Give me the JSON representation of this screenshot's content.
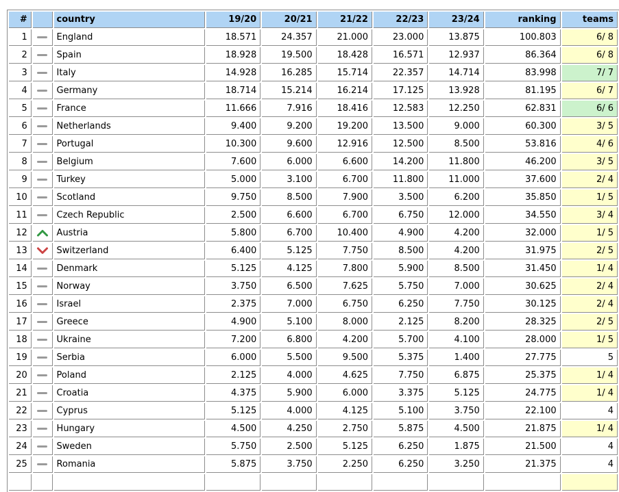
{
  "colors": {
    "header_bg": "#b0d4f4",
    "teams_yellow": "#ffffcc",
    "teams_green": "#ccf2cc",
    "border_gray": "#8c8c8c",
    "trend_up_green": "#339944",
    "trend_down_red": "#cc4444",
    "trend_same_gray": "#9a9a9a"
  },
  "table": {
    "headers": [
      "#",
      "",
      "country",
      "19/20",
      "20/21",
      "21/22",
      "22/23",
      "23/24",
      "ranking",
      "teams"
    ],
    "rows": [
      {
        "num": "1",
        "trend": "same",
        "country": "England",
        "seasons": [
          "18.571",
          "24.357",
          "21.000",
          "23.000",
          "13.875"
        ],
        "ranking": "100.803",
        "teams": "6/ 8",
        "teams_highlight": "yellow"
      },
      {
        "num": "2",
        "trend": "same",
        "country": "Spain",
        "seasons": [
          "18.928",
          "19.500",
          "18.428",
          "16.571",
          "12.937"
        ],
        "ranking": "86.364",
        "teams": "6/ 8",
        "teams_highlight": "yellow"
      },
      {
        "num": "3",
        "trend": "same",
        "country": "Italy",
        "seasons": [
          "14.928",
          "16.285",
          "15.714",
          "22.357",
          "14.714"
        ],
        "ranking": "83.998",
        "teams": "7/ 7",
        "teams_highlight": "green"
      },
      {
        "num": "4",
        "trend": "same",
        "country": "Germany",
        "seasons": [
          "18.714",
          "15.214",
          "16.214",
          "17.125",
          "13.928"
        ],
        "ranking": "81.195",
        "teams": "6/ 7",
        "teams_highlight": "yellow"
      },
      {
        "num": "5",
        "trend": "same",
        "country": "France",
        "seasons": [
          "11.666",
          "7.916",
          "18.416",
          "12.583",
          "12.250"
        ],
        "ranking": "62.831",
        "teams": "6/ 6",
        "teams_highlight": "green"
      },
      {
        "num": "6",
        "trend": "same",
        "country": "Netherlands",
        "seasons": [
          "9.400",
          "9.200",
          "19.200",
          "13.500",
          "9.000"
        ],
        "ranking": "60.300",
        "teams": "3/ 5",
        "teams_highlight": "yellow"
      },
      {
        "num": "7",
        "trend": "same",
        "country": "Portugal",
        "seasons": [
          "10.300",
          "9.600",
          "12.916",
          "12.500",
          "8.500"
        ],
        "ranking": "53.816",
        "teams": "4/ 6",
        "teams_highlight": "yellow"
      },
      {
        "num": "8",
        "trend": "same",
        "country": "Belgium",
        "seasons": [
          "7.600",
          "6.000",
          "6.600",
          "14.200",
          "11.800"
        ],
        "ranking": "46.200",
        "teams": "3/ 5",
        "teams_highlight": "yellow"
      },
      {
        "num": "9",
        "trend": "same",
        "country": "Turkey",
        "seasons": [
          "5.000",
          "3.100",
          "6.700",
          "11.800",
          "11.000"
        ],
        "ranking": "37.600",
        "teams": "2/ 4",
        "teams_highlight": "yellow"
      },
      {
        "num": "10",
        "trend": "same",
        "country": "Scotland",
        "seasons": [
          "9.750",
          "8.500",
          "7.900",
          "3.500",
          "6.200"
        ],
        "ranking": "35.850",
        "teams": "1/ 5",
        "teams_highlight": "yellow"
      },
      {
        "num": "11",
        "trend": "same",
        "country": "Czech Republic",
        "seasons": [
          "2.500",
          "6.600",
          "6.700",
          "6.750",
          "12.000"
        ],
        "ranking": "34.550",
        "teams": "3/ 4",
        "teams_highlight": "yellow"
      },
      {
        "num": "12",
        "trend": "up",
        "country": "Austria",
        "seasons": [
          "5.800",
          "6.700",
          "10.400",
          "4.900",
          "4.200"
        ],
        "ranking": "32.000",
        "teams": "1/ 5",
        "teams_highlight": "yellow"
      },
      {
        "num": "13",
        "trend": "down",
        "country": "Switzerland",
        "seasons": [
          "6.400",
          "5.125",
          "7.750",
          "8.500",
          "4.200"
        ],
        "ranking": "31.975",
        "teams": "2/ 5",
        "teams_highlight": "yellow"
      },
      {
        "num": "14",
        "trend": "same",
        "country": "Denmark",
        "seasons": [
          "5.125",
          "4.125",
          "7.800",
          "5.900",
          "8.500"
        ],
        "ranking": "31.450",
        "teams": "1/ 4",
        "teams_highlight": "yellow"
      },
      {
        "num": "15",
        "trend": "same",
        "country": "Norway",
        "seasons": [
          "3.750",
          "6.500",
          "7.625",
          "5.750",
          "7.000"
        ],
        "ranking": "30.625",
        "teams": "2/ 4",
        "teams_highlight": "yellow"
      },
      {
        "num": "16",
        "trend": "same",
        "country": "Israel",
        "seasons": [
          "2.375",
          "7.000",
          "6.750",
          "6.250",
          "7.750"
        ],
        "ranking": "30.125",
        "teams": "2/ 4",
        "teams_highlight": "yellow"
      },
      {
        "num": "17",
        "trend": "same",
        "country": "Greece",
        "seasons": [
          "4.900",
          "5.100",
          "8.000",
          "2.125",
          "8.200"
        ],
        "ranking": "28.325",
        "teams": "2/ 5",
        "teams_highlight": "yellow"
      },
      {
        "num": "18",
        "trend": "same",
        "country": "Ukraine",
        "seasons": [
          "7.200",
          "6.800",
          "4.200",
          "5.700",
          "4.100"
        ],
        "ranking": "28.000",
        "teams": "1/ 5",
        "teams_highlight": "yellow"
      },
      {
        "num": "19",
        "trend": "same",
        "country": "Serbia",
        "seasons": [
          "6.000",
          "5.500",
          "9.500",
          "5.375",
          "1.400"
        ],
        "ranking": "27.775",
        "teams": "5",
        "teams_highlight": "none"
      },
      {
        "num": "20",
        "trend": "same",
        "country": "Poland",
        "seasons": [
          "2.125",
          "4.000",
          "4.625",
          "7.750",
          "6.875"
        ],
        "ranking": "25.375",
        "teams": "1/ 4",
        "teams_highlight": "yellow"
      },
      {
        "num": "21",
        "trend": "same",
        "country": "Croatia",
        "seasons": [
          "4.375",
          "5.900",
          "6.000",
          "3.375",
          "5.125"
        ],
        "ranking": "24.775",
        "teams": "1/ 4",
        "teams_highlight": "yellow"
      },
      {
        "num": "22",
        "trend": "same",
        "country": "Cyprus",
        "seasons": [
          "5.125",
          "4.000",
          "4.125",
          "5.100",
          "3.750"
        ],
        "ranking": "22.100",
        "teams": "4",
        "teams_highlight": "none"
      },
      {
        "num": "23",
        "trend": "same",
        "country": "Hungary",
        "seasons": [
          "4.500",
          "4.250",
          "2.750",
          "5.875",
          "4.500"
        ],
        "ranking": "21.875",
        "teams": "1/ 4",
        "teams_highlight": "yellow"
      },
      {
        "num": "24",
        "trend": "same",
        "country": "Sweden",
        "seasons": [
          "5.750",
          "2.500",
          "5.125",
          "6.250",
          "1.875"
        ],
        "ranking": "21.500",
        "teams": "4",
        "teams_highlight": "none"
      },
      {
        "num": "25",
        "trend": "same",
        "country": "Romania",
        "seasons": [
          "5.875",
          "3.750",
          "2.250",
          "6.250",
          "3.250"
        ],
        "ranking": "21.375",
        "teams": "4",
        "teams_highlight": "none"
      }
    ],
    "partial_next_row": true
  }
}
